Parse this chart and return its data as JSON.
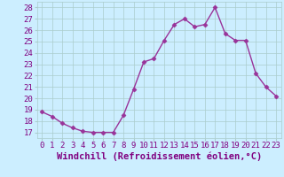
{
  "hours": [
    0,
    1,
    2,
    3,
    4,
    5,
    6,
    7,
    8,
    9,
    10,
    11,
    12,
    13,
    14,
    15,
    16,
    17,
    18,
    19,
    20,
    21,
    22,
    23
  ],
  "values": [
    18.8,
    18.4,
    17.8,
    17.4,
    17.1,
    17.0,
    17.0,
    17.0,
    18.5,
    20.8,
    23.2,
    23.5,
    25.1,
    26.5,
    27.0,
    26.3,
    26.5,
    28.0,
    25.7,
    25.1,
    25.1,
    22.2,
    21.0,
    20.2
  ],
  "line_color": "#993399",
  "marker": "D",
  "marker_size": 2.5,
  "bg_color": "#cceeff",
  "grid_color": "#aacccc",
  "xlabel": "Windchill (Refroidissement éolien,°C)",
  "ylim": [
    16.5,
    28.5
  ],
  "yticks": [
    17,
    18,
    19,
    20,
    21,
    22,
    23,
    24,
    25,
    26,
    27,
    28
  ],
  "xlim": [
    -0.5,
    23.5
  ],
  "xticks": [
    0,
    1,
    2,
    3,
    4,
    5,
    6,
    7,
    8,
    9,
    10,
    11,
    12,
    13,
    14,
    15,
    16,
    17,
    18,
    19,
    20,
    21,
    22,
    23
  ],
  "tick_fontsize": 6.5,
  "xlabel_fontsize": 7.5,
  "xlabel_color": "#800080",
  "tick_color": "#800080",
  "line_width": 1.0
}
